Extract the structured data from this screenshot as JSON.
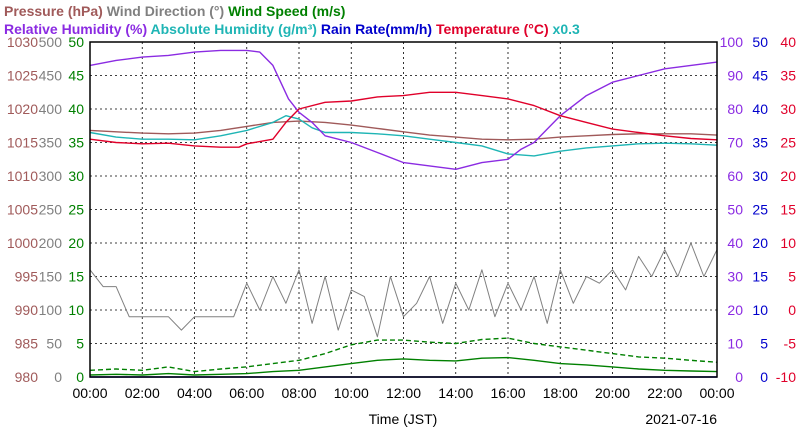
{
  "chart_data": {
    "type": "line",
    "date": "2021-07-16",
    "xlabel": "Time (JST)",
    "x_ticks": [
      "00:00",
      "02:00",
      "04:00",
      "06:00",
      "08:00",
      "10:00",
      "12:00",
      "14:00",
      "16:00",
      "18:00",
      "20:00",
      "22:00",
      "00:00"
    ],
    "grid": true,
    "legend": {
      "placement": "top",
      "row1": [
        {
          "key": "pressure",
          "text": "Pressure (hPa)"
        },
        {
          "key": "wind_direction",
          "text": "Wind Direction (°)"
        },
        {
          "key": "wind_speed",
          "text": "Wind Speed (m/s)"
        }
      ],
      "row2": [
        {
          "key": "relative_humidity",
          "text": "Relative Humidity (%)"
        },
        {
          "key": "absolute_humidity",
          "text": "Absolute Humidity (g/m³)"
        },
        {
          "key": "rain_rate",
          "text": "Rain Rate(mm/h)"
        },
        {
          "key": "temperature",
          "text": "Temperature (°C)"
        },
        {
          "key": "scale_note",
          "text": "x0.3"
        }
      ]
    },
    "axes": {
      "pressure": {
        "range": [
          980,
          1030
        ],
        "ticks": [
          "980",
          "985",
          "990",
          "995",
          "1000",
          "1005",
          "1010",
          "1015",
          "1020",
          "1025",
          "1030"
        ]
      },
      "wind_direction": {
        "range": [
          0,
          500
        ],
        "ticks": [
          "0",
          "50",
          "100",
          "150",
          "200",
          "250",
          "300",
          "350",
          "400",
          "450",
          "500"
        ]
      },
      "wind_speed": {
        "range": [
          0,
          50
        ],
        "ticks": [
          "0",
          "5",
          "10",
          "15",
          "20",
          "25",
          "30",
          "35",
          "40",
          "45",
          "50"
        ]
      },
      "humidity": {
        "range": [
          0,
          100
        ],
        "ticks": [
          "0",
          "10",
          "20",
          "30",
          "40",
          "50",
          "60",
          "70",
          "80",
          "90",
          "100"
        ]
      },
      "rain_rate": {
        "range": [
          0,
          50
        ],
        "ticks": [
          "0",
          "5",
          "10",
          "15",
          "20",
          "25",
          "30",
          "35",
          "40",
          "45",
          "50"
        ]
      },
      "temperature": {
        "range": [
          -10,
          40
        ],
        "ticks": [
          "-10",
          "-5",
          "0",
          "5",
          "10",
          "15",
          "20",
          "25",
          "30",
          "35",
          "40"
        ]
      }
    },
    "colors": {
      "pressure": "#a05a5a",
      "wind_direction": "#808080",
      "wind_speed": "#008000",
      "relative_humidity": "#8b2be2",
      "absolute_humidity": "#1fb5b5",
      "rain_rate": "#0000cc",
      "temperature": "#e0002a",
      "humidity_axis": "#8b2be2",
      "grid": "#000000"
    },
    "series": [
      {
        "name": "Pressure (hPa)",
        "key": "pressure",
        "axis": "pressure",
        "style": "solid",
        "x": [
          0,
          1,
          2,
          3,
          4,
          5,
          6,
          7,
          8,
          9,
          10,
          11,
          12,
          13,
          14,
          15,
          16,
          17,
          18,
          19,
          20,
          21,
          22,
          23,
          24
        ],
        "y": [
          1016.8,
          1016.6,
          1016.4,
          1016.3,
          1016.4,
          1016.8,
          1017.4,
          1018.0,
          1018.2,
          1018.0,
          1017.6,
          1017.1,
          1016.6,
          1016.1,
          1015.8,
          1015.5,
          1015.4,
          1015.5,
          1015.8,
          1016.0,
          1016.2,
          1016.3,
          1016.3,
          1016.3,
          1016.1
        ]
      },
      {
        "name": "Wind Direction (°)",
        "key": "wind_direction",
        "axis": "wind_direction",
        "style": "solid",
        "x": [
          0,
          0.5,
          1,
          1.5,
          2,
          2.5,
          3,
          3.5,
          4,
          4.5,
          5,
          5.5,
          6,
          6.5,
          7,
          7.5,
          8,
          8.5,
          9,
          9.5,
          10,
          10.5,
          11,
          11.5,
          12,
          12.5,
          13,
          13.5,
          14,
          14.5,
          15,
          15.5,
          16,
          16.5,
          17,
          17.5,
          18,
          18.5,
          19,
          19.5,
          20,
          20.5,
          21,
          21.5,
          22,
          22.5,
          23,
          23.5,
          24
        ],
        "y": [
          160,
          135,
          135,
          90,
          90,
          90,
          90,
          70,
          90,
          90,
          90,
          90,
          140,
          100,
          150,
          110,
          160,
          80,
          150,
          70,
          130,
          120,
          60,
          150,
          90,
          110,
          150,
          80,
          140,
          100,
          160,
          90,
          140,
          100,
          150,
          80,
          160,
          110,
          150,
          140,
          160,
          130,
          180,
          150,
          190,
          150,
          200,
          150,
          190
        ]
      },
      {
        "name": "Wind Speed (m/s)",
        "key": "wind_speed",
        "axis": "wind_speed",
        "style": "dashed",
        "x": [
          0,
          1,
          2,
          3,
          4,
          5,
          6,
          7,
          8,
          9,
          10,
          11,
          12,
          13,
          14,
          15,
          16,
          17,
          18,
          19,
          20,
          21,
          22,
          23,
          24
        ],
        "y": [
          1.0,
          1.2,
          1.0,
          1.5,
          0.8,
          1.2,
          1.5,
          2.0,
          2.5,
          3.5,
          4.8,
          5.5,
          5.5,
          5.2,
          5.0,
          5.6,
          5.8,
          5.0,
          4.5,
          4.0,
          3.5,
          3.0,
          2.8,
          2.5,
          2.2
        ]
      },
      {
        "name": "Wind Speed min",
        "key": "wind_speed",
        "axis": "wind_speed",
        "style": "solid",
        "x": [
          0,
          1,
          2,
          3,
          4,
          5,
          6,
          7,
          8,
          9,
          10,
          11,
          12,
          13,
          14,
          15,
          16,
          17,
          18,
          19,
          20,
          21,
          22,
          23,
          24
        ],
        "y": [
          0.3,
          0.4,
          0.3,
          0.5,
          0.3,
          0.4,
          0.5,
          0.8,
          1.0,
          1.5,
          2.0,
          2.5,
          2.7,
          2.5,
          2.4,
          2.8,
          2.9,
          2.5,
          2.0,
          1.8,
          1.5,
          1.2,
          1.0,
          0.9,
          0.8
        ]
      },
      {
        "name": "Relative Humidity (%)",
        "key": "relative_humidity",
        "axis": "humidity",
        "style": "solid",
        "x": [
          0,
          1,
          2,
          3,
          4,
          5,
          6,
          6.5,
          7,
          7.3,
          7.6,
          8,
          8.5,
          9,
          10,
          11,
          12,
          13,
          14,
          15,
          16,
          16.5,
          17,
          18,
          19,
          20,
          21,
          22,
          23,
          24
        ],
        "y": [
          93,
          94.5,
          95.5,
          96,
          97,
          97.5,
          97.5,
          97,
          93,
          88,
          83,
          79,
          76,
          72,
          70,
          67,
          64,
          63,
          62,
          64,
          65,
          68,
          70,
          78,
          84,
          88,
          90,
          92,
          93,
          94
        ]
      },
      {
        "name": "Absolute Humidity (g/m³)",
        "key": "absolute_humidity",
        "axis": "wind_speed",
        "style": "solid",
        "x": [
          0,
          1,
          2,
          3,
          4,
          5,
          6,
          7,
          7.5,
          8,
          8.5,
          9,
          10,
          11,
          12,
          13,
          14,
          15,
          16,
          17,
          18,
          19,
          20,
          21,
          22,
          23,
          24
        ],
        "y": [
          36.5,
          35.8,
          35.5,
          35.5,
          35.4,
          36.0,
          36.8,
          38.0,
          39.0,
          38.5,
          37.2,
          36.5,
          36.5,
          36.3,
          36.0,
          35.5,
          35.0,
          34.5,
          33.3,
          33.0,
          33.7,
          34.2,
          34.5,
          34.8,
          34.9,
          34.8,
          34.6
        ]
      },
      {
        "name": "Temperature (°C)",
        "key": "temperature",
        "axis": "temperature",
        "style": "solid",
        "x": [
          0,
          1,
          2,
          3,
          4,
          5,
          5.7,
          6,
          7,
          7.5,
          8,
          9,
          10,
          11,
          12,
          13,
          14,
          15,
          16,
          17,
          18,
          19,
          20,
          21,
          22,
          23,
          24
        ],
        "y": [
          25.5,
          25.0,
          24.8,
          24.9,
          24.5,
          24.3,
          24.3,
          24.8,
          25.5,
          28.0,
          30.0,
          31.0,
          31.2,
          31.8,
          32.0,
          32.5,
          32.5,
          32.0,
          31.5,
          30.5,
          29.0,
          28.0,
          27.0,
          26.5,
          26.0,
          25.6,
          25.4
        ]
      },
      {
        "name": "Rain Rate(mm/h)",
        "key": "rain_rate",
        "axis": "rain_rate",
        "style": "solid",
        "x": [
          0,
          24
        ],
        "y": [
          0,
          0
        ]
      }
    ]
  }
}
